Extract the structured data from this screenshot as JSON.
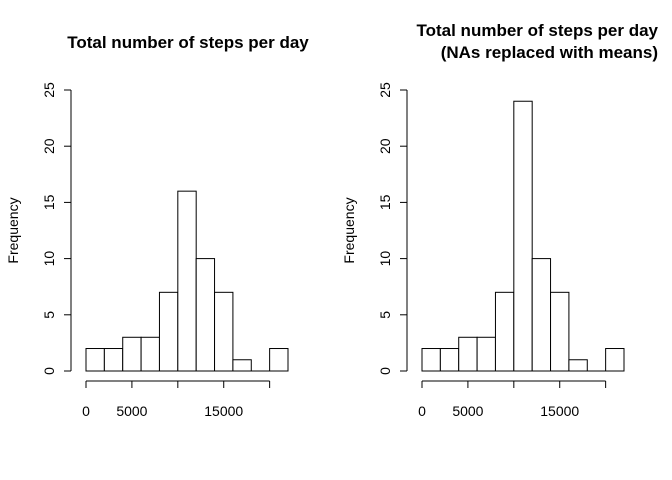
{
  "chart_data": [
    {
      "type": "bar",
      "title_lines": [
        "Total number of steps per day"
      ],
      "xlabel": "",
      "ylabel": "Frequency",
      "bin_edges": [
        0,
        2000,
        4000,
        6000,
        8000,
        10000,
        12000,
        14000,
        16000,
        18000,
        20000,
        22000
      ],
      "values": [
        2,
        2,
        3,
        3,
        7,
        16,
        10,
        7,
        1,
        0,
        2
      ],
      "xlim": [
        0,
        22000
      ],
      "ylim": [
        0,
        25
      ],
      "x_ticks": [
        0,
        5000,
        10000,
        15000,
        20000
      ],
      "x_tick_labels": [
        "0",
        "5000",
        "",
        "15000",
        ""
      ],
      "y_ticks": [
        0,
        5,
        10,
        15,
        20,
        25
      ],
      "y_tick_labels": [
        "0",
        "5",
        "10",
        "15",
        "20",
        "25"
      ],
      "grid": false
    },
    {
      "type": "bar",
      "title_lines": [
        "Total number of steps per day",
        "(NAs replaced with means)"
      ],
      "xlabel": "",
      "ylabel": "Frequency",
      "bin_edges": [
        0,
        2000,
        4000,
        6000,
        8000,
        10000,
        12000,
        14000,
        16000,
        18000,
        20000,
        22000
      ],
      "values": [
        2,
        2,
        3,
        3,
        7,
        24,
        10,
        7,
        1,
        0,
        2
      ],
      "xlim": [
        0,
        22000
      ],
      "ylim": [
        0,
        25
      ],
      "x_ticks": [
        0,
        5000,
        10000,
        15000,
        20000
      ],
      "x_tick_labels": [
        "0",
        "5000",
        "",
        "15000",
        ""
      ],
      "y_ticks": [
        0,
        5,
        10,
        15,
        20,
        25
      ],
      "y_tick_labels": [
        "0",
        "5",
        "10",
        "15",
        "20",
        "25"
      ],
      "grid": false
    }
  ]
}
